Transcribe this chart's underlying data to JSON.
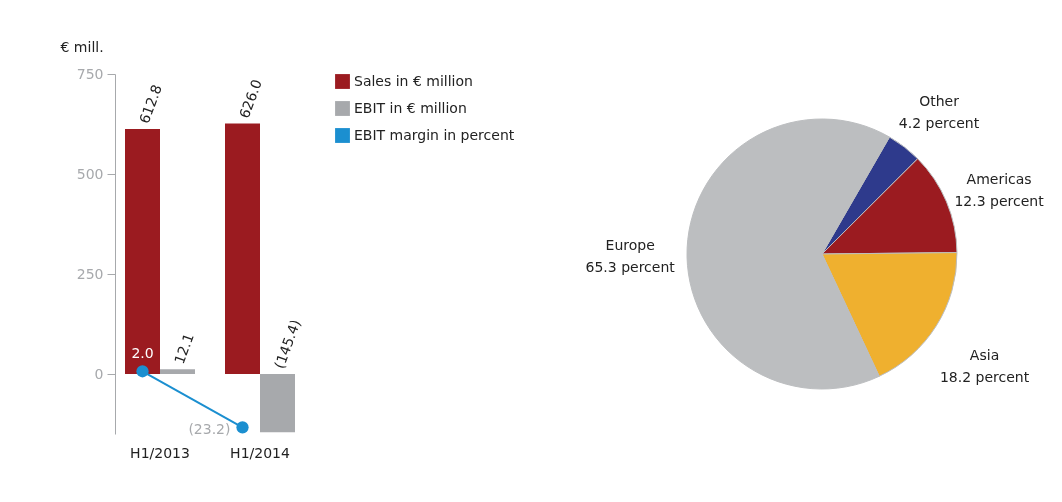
{
  "chart_data": [
    {
      "type": "bar",
      "ylabel": "€ mill.",
      "categories": [
        "H1/2013",
        "H1/2014"
      ],
      "ylim": [
        -150,
        750
      ],
      "yticks": [
        0,
        250,
        500,
        750
      ],
      "y2lim": [
        -26.2,
        135.6
      ],
      "grid": false,
      "legend": "right",
      "marker": "circle",
      "series": [
        {
          "name": "Sales in € million",
          "color": "#9b1b20",
          "values": [
            612.8,
            626.0
          ],
          "value_labels": [
            "612.8",
            "626.0"
          ]
        },
        {
          "name": "EBIT in € million",
          "color": "#a7a9ac",
          "values": [
            12.1,
            -145.4
          ],
          "value_labels": [
            "12.1",
            "(145.4)"
          ]
        },
        {
          "name": "EBIT margin in percent",
          "type": "line",
          "axis": "y2",
          "color": "#1b8fd0",
          "values": [
            2.0,
            -23.2
          ],
          "value_labels": [
            "2.0",
            "(23.2)"
          ]
        }
      ]
    },
    {
      "type": "pie",
      "categories": [
        "Other",
        "Americas",
        "Asia",
        "Europe"
      ],
      "values": [
        4.2,
        12.3,
        18.2,
        65.3
      ],
      "value_labels": [
        "4.2 percent",
        "12.3 percent",
        "18.2 percent",
        "65.3 percent"
      ],
      "colors": [
        "#2e3a8c",
        "#9b1b20",
        "#efb02f",
        "#bcbec0"
      ]
    }
  ]
}
